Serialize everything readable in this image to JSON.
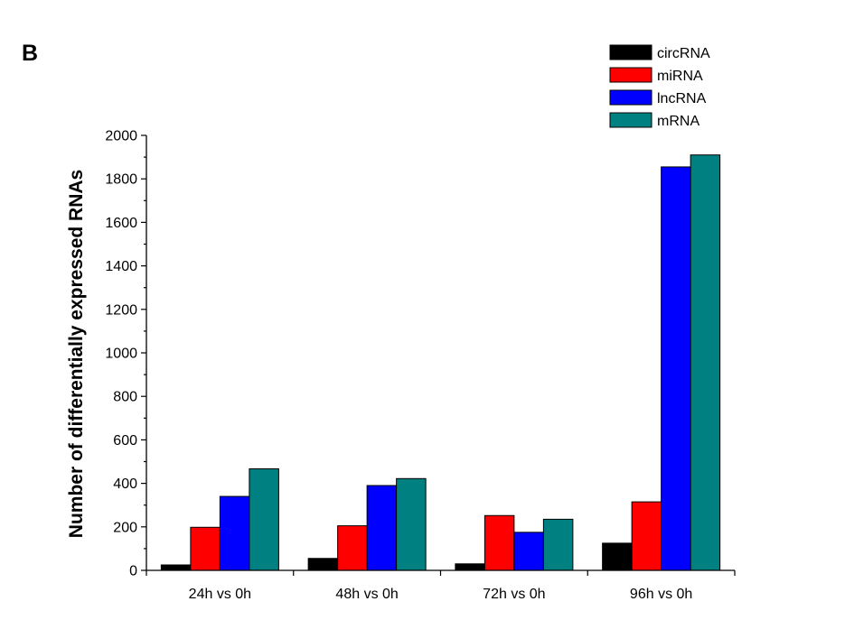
{
  "chart_data": {
    "type": "bar",
    "panel_label": "B",
    "title": "",
    "xlabel": "",
    "ylabel": "Number of differentially expressed RNAs",
    "categories": [
      "24h vs 0h",
      "48h vs 0h",
      "72h vs 0h",
      "96h vs 0h"
    ],
    "series": [
      {
        "name": "circRNA",
        "color": "#000000",
        "values": [
          25,
          55,
          30,
          125
        ]
      },
      {
        "name": "miRNA",
        "color": "#ff0000",
        "values": [
          198,
          205,
          252,
          315
        ]
      },
      {
        "name": "lncRNA",
        "color": "#0000ff",
        "values": [
          340,
          390,
          175,
          1855
        ]
      },
      {
        "name": "mRNA",
        "color": "#008080",
        "values": [
          467,
          422,
          235,
          1910
        ]
      }
    ],
    "ylim": [
      0,
      2000
    ],
    "yticks": [
      0,
      200,
      400,
      600,
      800,
      1000,
      1200,
      1400,
      1600,
      1800,
      2000
    ],
    "grid": false,
    "legend_position": "top-right"
  }
}
